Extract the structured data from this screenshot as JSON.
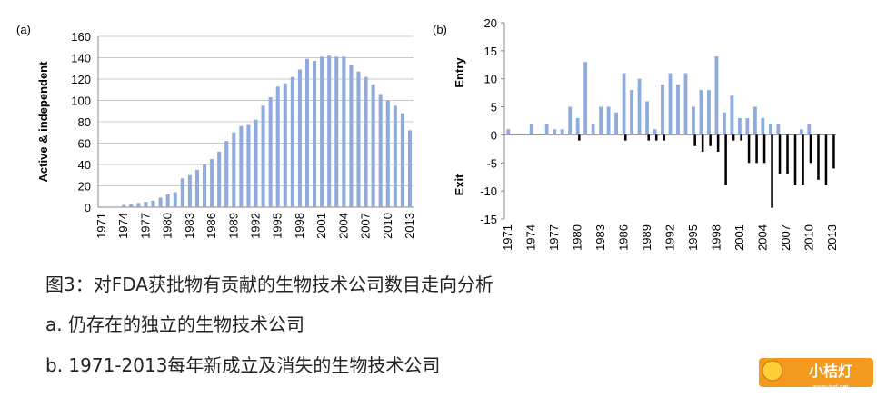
{
  "chart_data": [
    {
      "type": "bar",
      "panel": "(a)",
      "ylabel": "Active & independent",
      "categories": [
        "1971",
        null,
        null,
        "1974",
        null,
        null,
        "1977",
        null,
        null,
        "1980",
        null,
        null,
        "1983",
        null,
        null,
        "1986",
        null,
        null,
        "1989",
        null,
        null,
        "1992",
        null,
        null,
        "1995",
        null,
        null,
        "1998",
        null,
        null,
        "2001",
        null,
        null,
        "2004",
        null,
        null,
        "2007",
        null,
        null,
        "2010",
        null,
        null,
        "2013"
      ],
      "values": [
        0,
        0,
        0,
        2,
        3,
        4,
        5,
        6,
        9,
        12,
        14,
        27,
        30,
        35,
        40,
        45,
        52,
        62,
        70,
        76,
        77,
        82,
        95,
        103,
        113,
        116,
        122,
        129,
        139,
        137,
        141,
        142,
        141,
        141,
        133,
        127,
        122,
        115,
        106,
        100,
        95,
        88,
        72
      ],
      "color": "#8faadc",
      "ylim": [
        0,
        160
      ],
      "yticks": [
        0,
        20,
        40,
        60,
        80,
        100,
        120,
        140,
        160
      ],
      "grid": true
    },
    {
      "type": "bar",
      "panel": "(b)",
      "categories": [
        "1971",
        null,
        null,
        "1974",
        null,
        null,
        "1977",
        null,
        null,
        "1980",
        null,
        null,
        "1983",
        null,
        null,
        "1986",
        null,
        null,
        "1989",
        null,
        null,
        "1992",
        null,
        null,
        "1995",
        null,
        null,
        "1998",
        null,
        null,
        "2001",
        null,
        null,
        "2004",
        null,
        null,
        "2007",
        null,
        null,
        "2010",
        null,
        null,
        "2013"
      ],
      "series": [
        {
          "name": "Entry",
          "color": "#8faadc",
          "values": [
            1,
            0,
            0,
            2,
            0,
            2,
            1,
            1,
            5,
            3,
            13,
            2,
            5,
            5,
            4,
            11,
            8,
            10,
            6,
            1,
            9,
            11,
            9,
            11,
            5,
            8,
            8,
            14,
            4,
            7,
            3,
            3,
            5,
            3,
            2,
            2,
            0,
            0,
            1,
            2,
            0,
            0,
            0
          ]
        },
        {
          "name": "Exit",
          "color": "#000000",
          "values": [
            0,
            0,
            0,
            0,
            0,
            0,
            0,
            0,
            0,
            -1,
            0,
            0,
            0,
            0,
            0,
            -1,
            0,
            0,
            -1,
            -1,
            -1,
            0,
            0,
            0,
            -2,
            -3,
            -2,
            -3,
            -9,
            -1,
            -1,
            -5,
            -5,
            -5,
            -13,
            -7,
            -7,
            -9,
            -9,
            -5,
            -8,
            -9,
            -6
          ]
        }
      ],
      "ylim": [
        -15,
        20
      ],
      "yticks": [
        -15,
        -10,
        -5,
        0,
        5,
        10,
        15,
        20
      ],
      "grid": false
    }
  ],
  "caption": {
    "title": "图3：对FDA获批物有贡献的生物技术公司数目走向分析",
    "lines": [
      "a. 仍存在的独立的生物技术公司",
      "b. 1971-2013每年新成立及消失的生物技术公司"
    ]
  },
  "logo": {
    "text": "小桔灯",
    "url": "www.iivd.net"
  }
}
